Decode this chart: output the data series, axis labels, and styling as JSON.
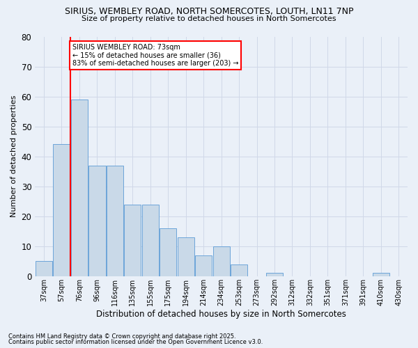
{
  "title1": "SIRIUS, WEMBLEY ROAD, NORTH SOMERCOTES, LOUTH, LN11 7NP",
  "title2": "Size of property relative to detached houses in North Somercotes",
  "xlabel": "Distribution of detached houses by size in North Somercotes",
  "ylabel": "Number of detached properties",
  "categories": [
    "37sqm",
    "57sqm",
    "76sqm",
    "96sqm",
    "116sqm",
    "135sqm",
    "155sqm",
    "175sqm",
    "194sqm",
    "214sqm",
    "234sqm",
    "253sqm",
    "273sqm",
    "292sqm",
    "312sqm",
    "332sqm",
    "351sqm",
    "371sqm",
    "391sqm",
    "410sqm",
    "430sqm"
  ],
  "values": [
    5,
    44,
    59,
    37,
    37,
    24,
    24,
    16,
    13,
    7,
    10,
    4,
    0,
    1,
    0,
    0,
    0,
    0,
    0,
    1,
    0
  ],
  "bar_color": "#c9d9e8",
  "bar_edge_color": "#5b9bd5",
  "grid_color": "#d0d8e8",
  "background_color": "#eaf0f8",
  "red_line_index": 2,
  "annotation_text": "SIRIUS WEMBLEY ROAD: 73sqm\n← 15% of detached houses are smaller (36)\n83% of semi-detached houses are larger (203) →",
  "annotation_box_color": "white",
  "annotation_box_edge": "red",
  "footer1": "Contains HM Land Registry data © Crown copyright and database right 2025.",
  "footer2": "Contains public sector information licensed under the Open Government Licence v3.0.",
  "ylim": [
    0,
    80
  ],
  "yticks": [
    0,
    10,
    20,
    30,
    40,
    50,
    60,
    70,
    80
  ]
}
